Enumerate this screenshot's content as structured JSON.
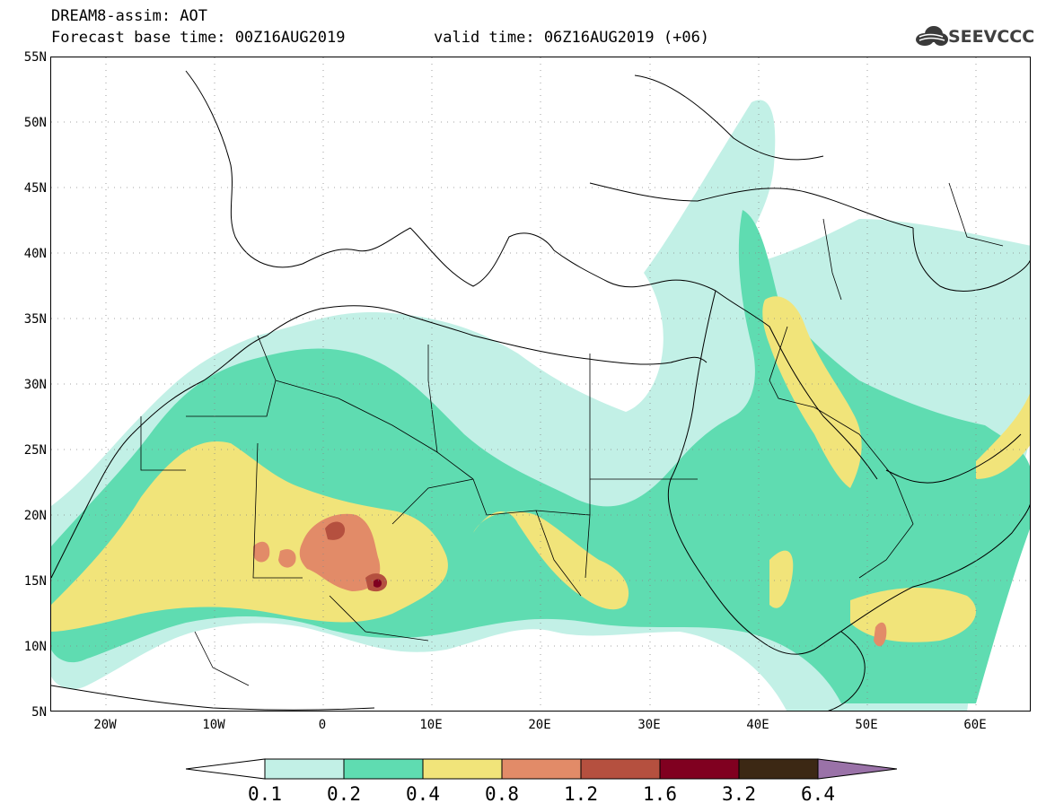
{
  "header": {
    "title": "DREAM8-assim: AOT",
    "base_time": "Forecast base time: 00Z16AUG2019",
    "valid_time": "valid time: 06Z16AUG2019 (+06)",
    "logo_text": "SEEVCCC"
  },
  "map": {
    "lat_labels": [
      "55N",
      "50N",
      "45N",
      "40N",
      "35N",
      "30N",
      "25N",
      "20N",
      "15N",
      "10N",
      "5N"
    ],
    "lon_labels": [
      "20W",
      "10W",
      "0",
      "10E",
      "20E",
      "30E",
      "40E",
      "50E",
      "60E"
    ],
    "lon_range": [
      -25,
      65
    ],
    "lat_range": [
      5,
      55
    ],
    "gridlines": "dotted"
  },
  "legend": {
    "labels": [
      "0.1",
      "0.2",
      "0.4",
      "0.8",
      "1.2",
      "1.6",
      "3.2",
      "6.4"
    ],
    "colors": {
      "below": "#ffffff",
      "c1": "#c2f0e6",
      "c2": "#5fdcb1",
      "c3": "#f1e47a",
      "c4": "#e28b68",
      "c5": "#b5503f",
      "c6": "#800020",
      "c7": "#3c2814",
      "above": "#9a72a8"
    }
  }
}
